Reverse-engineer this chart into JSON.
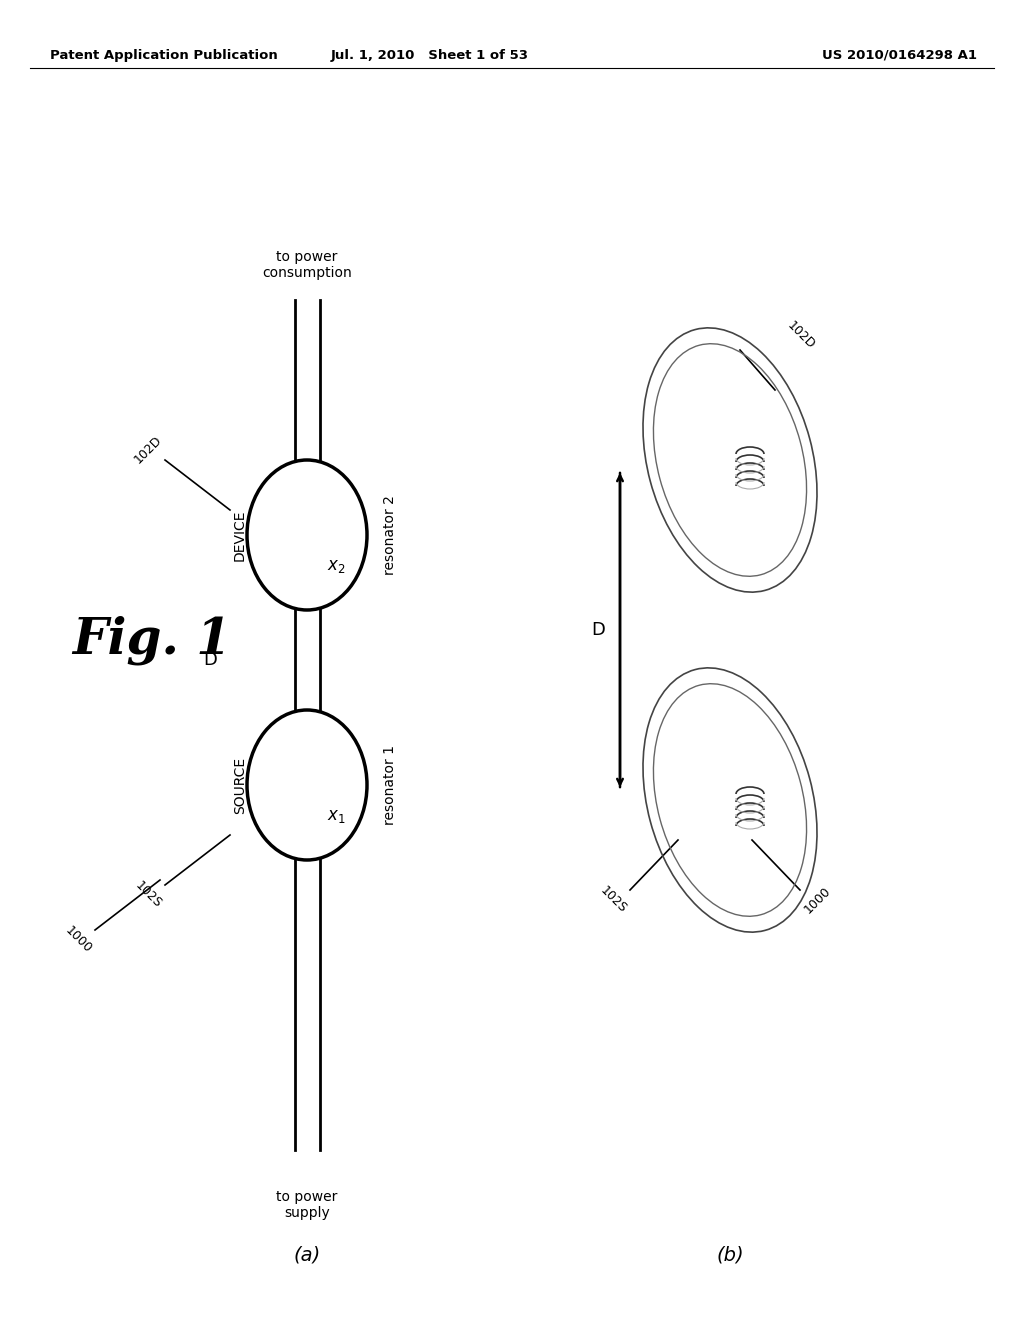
{
  "bg_color": "#ffffff",
  "header_left": "Patent Application Publication",
  "header_mid": "Jul. 1, 2010   Sheet 1 of 53",
  "header_right": "US 2010/0164298 A1",
  "fig_label": "Fig. 1",
  "sub_a_label": "(a)",
  "sub_b_label": "(b)",
  "source_label": "SOURCE",
  "device_label": "DEVICE",
  "x1_label": "x₁",
  "x2_label": "x₂",
  "res1_label": "resonator 1",
  "res2_label": "resonator 2",
  "D_label_a": "D",
  "D_label_b": "D",
  "label_1000_a": "1000",
  "label_102S_a": "102S",
  "label_102D_a": "102D",
  "label_102S_b": "102S",
  "label_102D_b": "102D",
  "label_1000_b": "1000",
  "power_supply_text": "to power\nsupply",
  "power_consumption_text": "to power\nconsumption"
}
